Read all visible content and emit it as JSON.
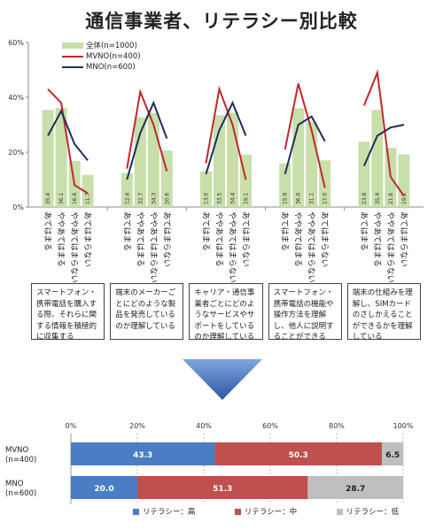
{
  "title": "通信事業者、リテラシー別比較",
  "chart_data": [
    {
      "type": "bar+line",
      "ylim": [
        0,
        60
      ],
      "yticks": [
        "0%",
        "20%",
        "40%",
        "60%"
      ],
      "legend": [
        "全体(n=1000)",
        "MVNO(n=400)",
        "MNO(n=600)"
      ],
      "colors": {
        "overall": "#c8dfaa",
        "mvno": "#c0272d",
        "mno": "#1f2d5c"
      },
      "answer_labels": [
        "あてはまる",
        "ややあてはまる",
        "ややあてはまらない",
        "あてはまらない"
      ],
      "groups": [
        {
          "description": "スマートフォン・携帯電話を購入する際、それらに関する情報を積極的に収集する",
          "overall": [
            35.4,
            36.1,
            16.8,
            11.7
          ],
          "mvno": [
            43.0,
            38.0,
            8.0,
            5.0
          ],
          "mno": [
            26.0,
            35.0,
            23.0,
            17.0
          ]
        },
        {
          "description": "端末のメーカーごとにどのような製品を発売しているのか理解している",
          "overall": [
            12.4,
            32.7,
            34.3,
            20.6
          ],
          "mvno": [
            14.0,
            42.0,
            30.0,
            13.0
          ],
          "mno": [
            10.0,
            27.0,
            38.0,
            25.0
          ]
        },
        {
          "description": "キャリア・通信事業者ごとにどのようなサービスやサポートをしているのか理解している",
          "overall": [
            13.0,
            33.5,
            34.4,
            19.1
          ],
          "mvno": [
            16.0,
            43.0,
            30.0,
            10.0
          ],
          "mno": [
            12.0,
            28.0,
            38.0,
            26.0
          ]
        },
        {
          "description": "スマートフォン・携帯電話の機能や操作方法を理解し、他人に説明することができる",
          "overall": [
            15.9,
            36.0,
            31.1,
            17.0
          ],
          "mvno": [
            21.0,
            45.0,
            28.0,
            7.0
          ],
          "mno": [
            12.0,
            30.0,
            33.0,
            24.0
          ]
        },
        {
          "description": "端末の仕組みを理解し、SIMカードのさしかえることができるかを理解している",
          "overall": [
            23.8,
            35.4,
            21.6,
            19.2
          ],
          "mvno": [
            37.0,
            49.0,
            11.0,
            4.0
          ],
          "mno": [
            15.0,
            26.0,
            29.0,
            30.0
          ]
        }
      ]
    },
    {
      "type": "stacked-bar-horizontal",
      "xlim": [
        0,
        100
      ],
      "xticks": [
        "0%",
        "20%",
        "40%",
        "60%",
        "80%",
        "100%"
      ],
      "categories": [
        "MVNO\n(n=400)",
        "MNO\n(n=600)"
      ],
      "series": [
        {
          "name": "リテラシー：高",
          "color": "#4a7ec4",
          "values": [
            43.3,
            20.0
          ]
        },
        {
          "name": "リテラシー：中",
          "color": "#c0504d",
          "values": [
            50.3,
            51.3
          ]
        },
        {
          "name": "リテラシー：低",
          "color": "#bfbfbf",
          "values": [
            6.5,
            28.7
          ]
        }
      ],
      "value_labels": [
        [
          "43.3",
          "50.3",
          "6.5"
        ],
        [
          "20.0",
          "51.3",
          "28.7"
        ]
      ]
    }
  ]
}
